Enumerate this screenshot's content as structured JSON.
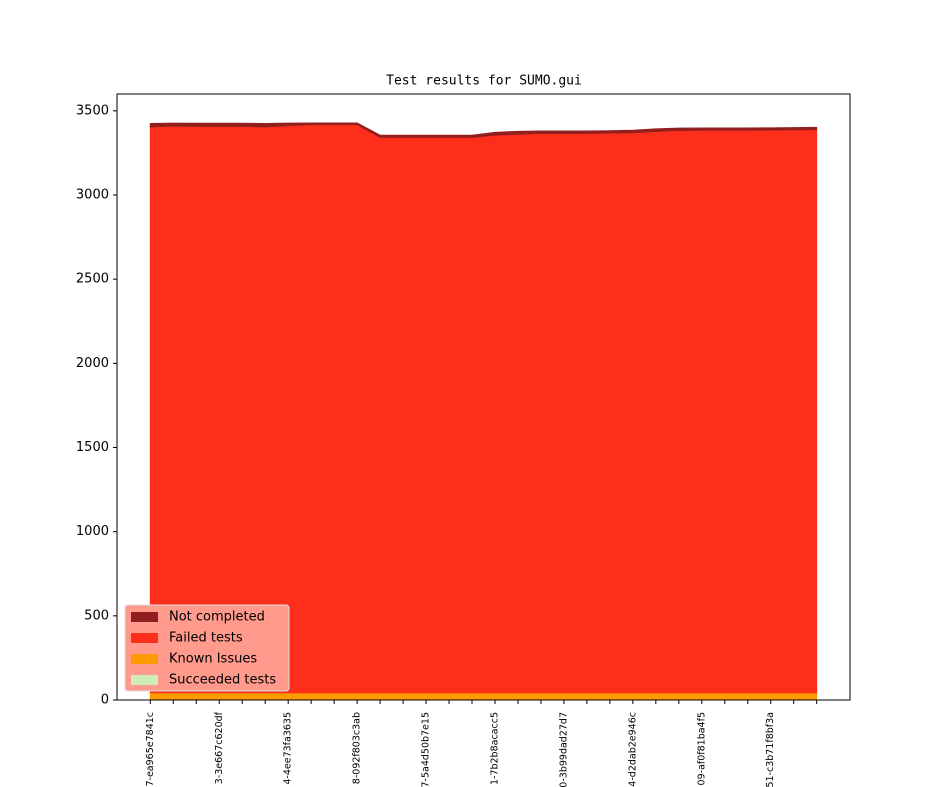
{
  "chart_data": {
    "type": "area",
    "stacked": true,
    "title": "Test results for SUMO.gui",
    "categories": [
      "7-ea965e7841c",
      null,
      null,
      "3-3e667c620df",
      null,
      null,
      "4-4ee73fa3635",
      null,
      null,
      "8-092f803c3ab",
      null,
      null,
      "7-5a4d50b7e15",
      null,
      null,
      "1-7b2b8acacc5",
      null,
      null,
      "0-3b99dad27d7",
      null,
      null,
      "4-d2dab2e946c",
      null,
      null,
      "09-af0f81ba4f5",
      null,
      null,
      "51-c3b71f8bf3a",
      null,
      null
    ],
    "series": [
      {
        "name": "Succeeded tests",
        "color": "#d0ecb8",
        "values": [
          3,
          3,
          3,
          3,
          3,
          3,
          3,
          3,
          3,
          3,
          3,
          3,
          3,
          3,
          3,
          3,
          3,
          3,
          3,
          3,
          3,
          3,
          3,
          3,
          3,
          3,
          3,
          3,
          3,
          3
        ]
      },
      {
        "name": "Known Issues",
        "color": "#fd9a00",
        "values": [
          40,
          40,
          40,
          40,
          40,
          40,
          40,
          40,
          40,
          40,
          40,
          40,
          40,
          40,
          40,
          40,
          40,
          40,
          40,
          40,
          40,
          40,
          40,
          40,
          40,
          40,
          40,
          40,
          40,
          40
        ]
      },
      {
        "name": "Failed tests",
        "color": "#fe2f1a",
        "values": [
          3362,
          3367,
          3365,
          3365,
          3365,
          3362,
          3369,
          3375,
          3375,
          3375,
          3299,
          3299,
          3299,
          3299,
          3299,
          3312,
          3319,
          3322,
          3322,
          3322,
          3325,
          3327,
          3335,
          3340,
          3342,
          3342,
          3342,
          3343,
          3344,
          3345
        ]
      },
      {
        "name": "Not completed",
        "color": "#921f1f",
        "values": [
          20,
          17,
          18,
          18,
          18,
          20,
          15,
          10,
          10,
          10,
          13,
          13,
          13,
          13,
          13,
          17,
          16,
          15,
          15,
          15,
          14,
          15,
          15,
          14,
          13,
          13,
          13,
          13,
          13,
          14
        ]
      }
    ],
    "ylim": [
      0,
      3600
    ],
    "yticks": [
      0,
      500,
      1000,
      1500,
      2000,
      2500,
      3000,
      3500
    ],
    "grid": false,
    "legend": "lower left",
    "legend_background": "#ff9a8c"
  }
}
